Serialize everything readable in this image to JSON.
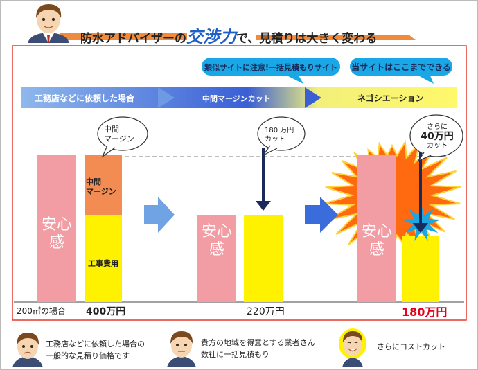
{
  "header": {
    "title_pre": "防水アドバイザーの",
    "title_accent": "交渉力",
    "title_post": "で、見積りは大きく変わる"
  },
  "callouts": {
    "similar_sites": "類似サイトに注意!一括見積もりサイト",
    "this_site": "当サイトはここまでできる"
  },
  "stages": {
    "stage1": "工務店などに依頼した場合",
    "stage2": "中間マージンカット",
    "stage3": "ネゴシエーション"
  },
  "bubbles": {
    "margin_line1": "中間",
    "margin_line2": "マージン",
    "cut_line1": "180 万円",
    "cut_line2": "カット",
    "extra_line1": "さらに",
    "extra_line2": "40万円",
    "extra_line3": "カット"
  },
  "bars": {
    "anshin": "安心感",
    "margin_line1": "中間",
    "margin_line2": "マージン",
    "construction": "工事費用"
  },
  "prices": {
    "area": "200㎡の場合",
    "p1": "400万円",
    "p2": "220万円",
    "p3": "180万円"
  },
  "footer": {
    "f1_line1": "工務店などに依頼した場合の",
    "f1_line2": "一般的な見積り価格です",
    "f2_line1": "貴方の地域を得意とする業者さん",
    "f2_line2": "数社に一括見積もり",
    "f3": "さらにコストカット"
  },
  "colors": {
    "pink": "#f29ca3",
    "orange": "#f28c52",
    "yellow": "#fff200",
    "blue_arrow": "#3a6cdc",
    "red": "#e5001c",
    "bubble_blue": "#1aa7e6"
  }
}
